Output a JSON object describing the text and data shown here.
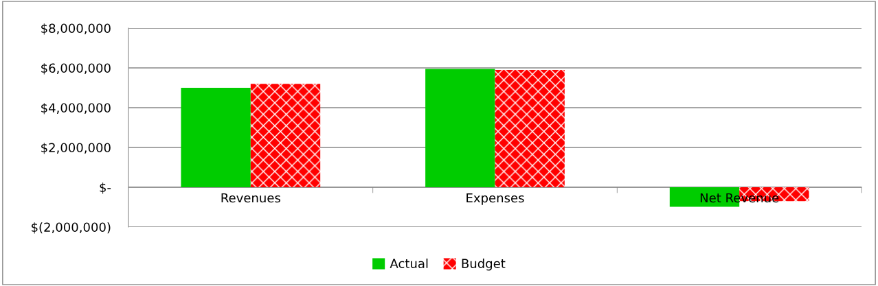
{
  "chart_data": {
    "type": "bar",
    "categories": [
      "Revenues",
      "Expenses",
      "Net Revenue"
    ],
    "series": [
      {
        "name": "Actual",
        "color": "#00cc00",
        "values": [
          5000000,
          5950000,
          -980000
        ]
      },
      {
        "name": "Budget",
        "color": "#ff0000",
        "values": [
          5200000,
          5900000,
          -700000
        ]
      }
    ],
    "ylim": [
      -2000000,
      8000000
    ],
    "yticks": [
      {
        "value": -2000000,
        "label": "$(2,000,000)"
      },
      {
        "value": 0,
        "label": "$-"
      },
      {
        "value": 2000000,
        "label": "$2,000,000"
      },
      {
        "value": 4000000,
        "label": "$4,000,000"
      },
      {
        "value": 6000000,
        "label": "$6,000,000"
      },
      {
        "value": 8000000,
        "label": "$8,000,000"
      }
    ],
    "grid": "y",
    "legend": "bottom"
  }
}
